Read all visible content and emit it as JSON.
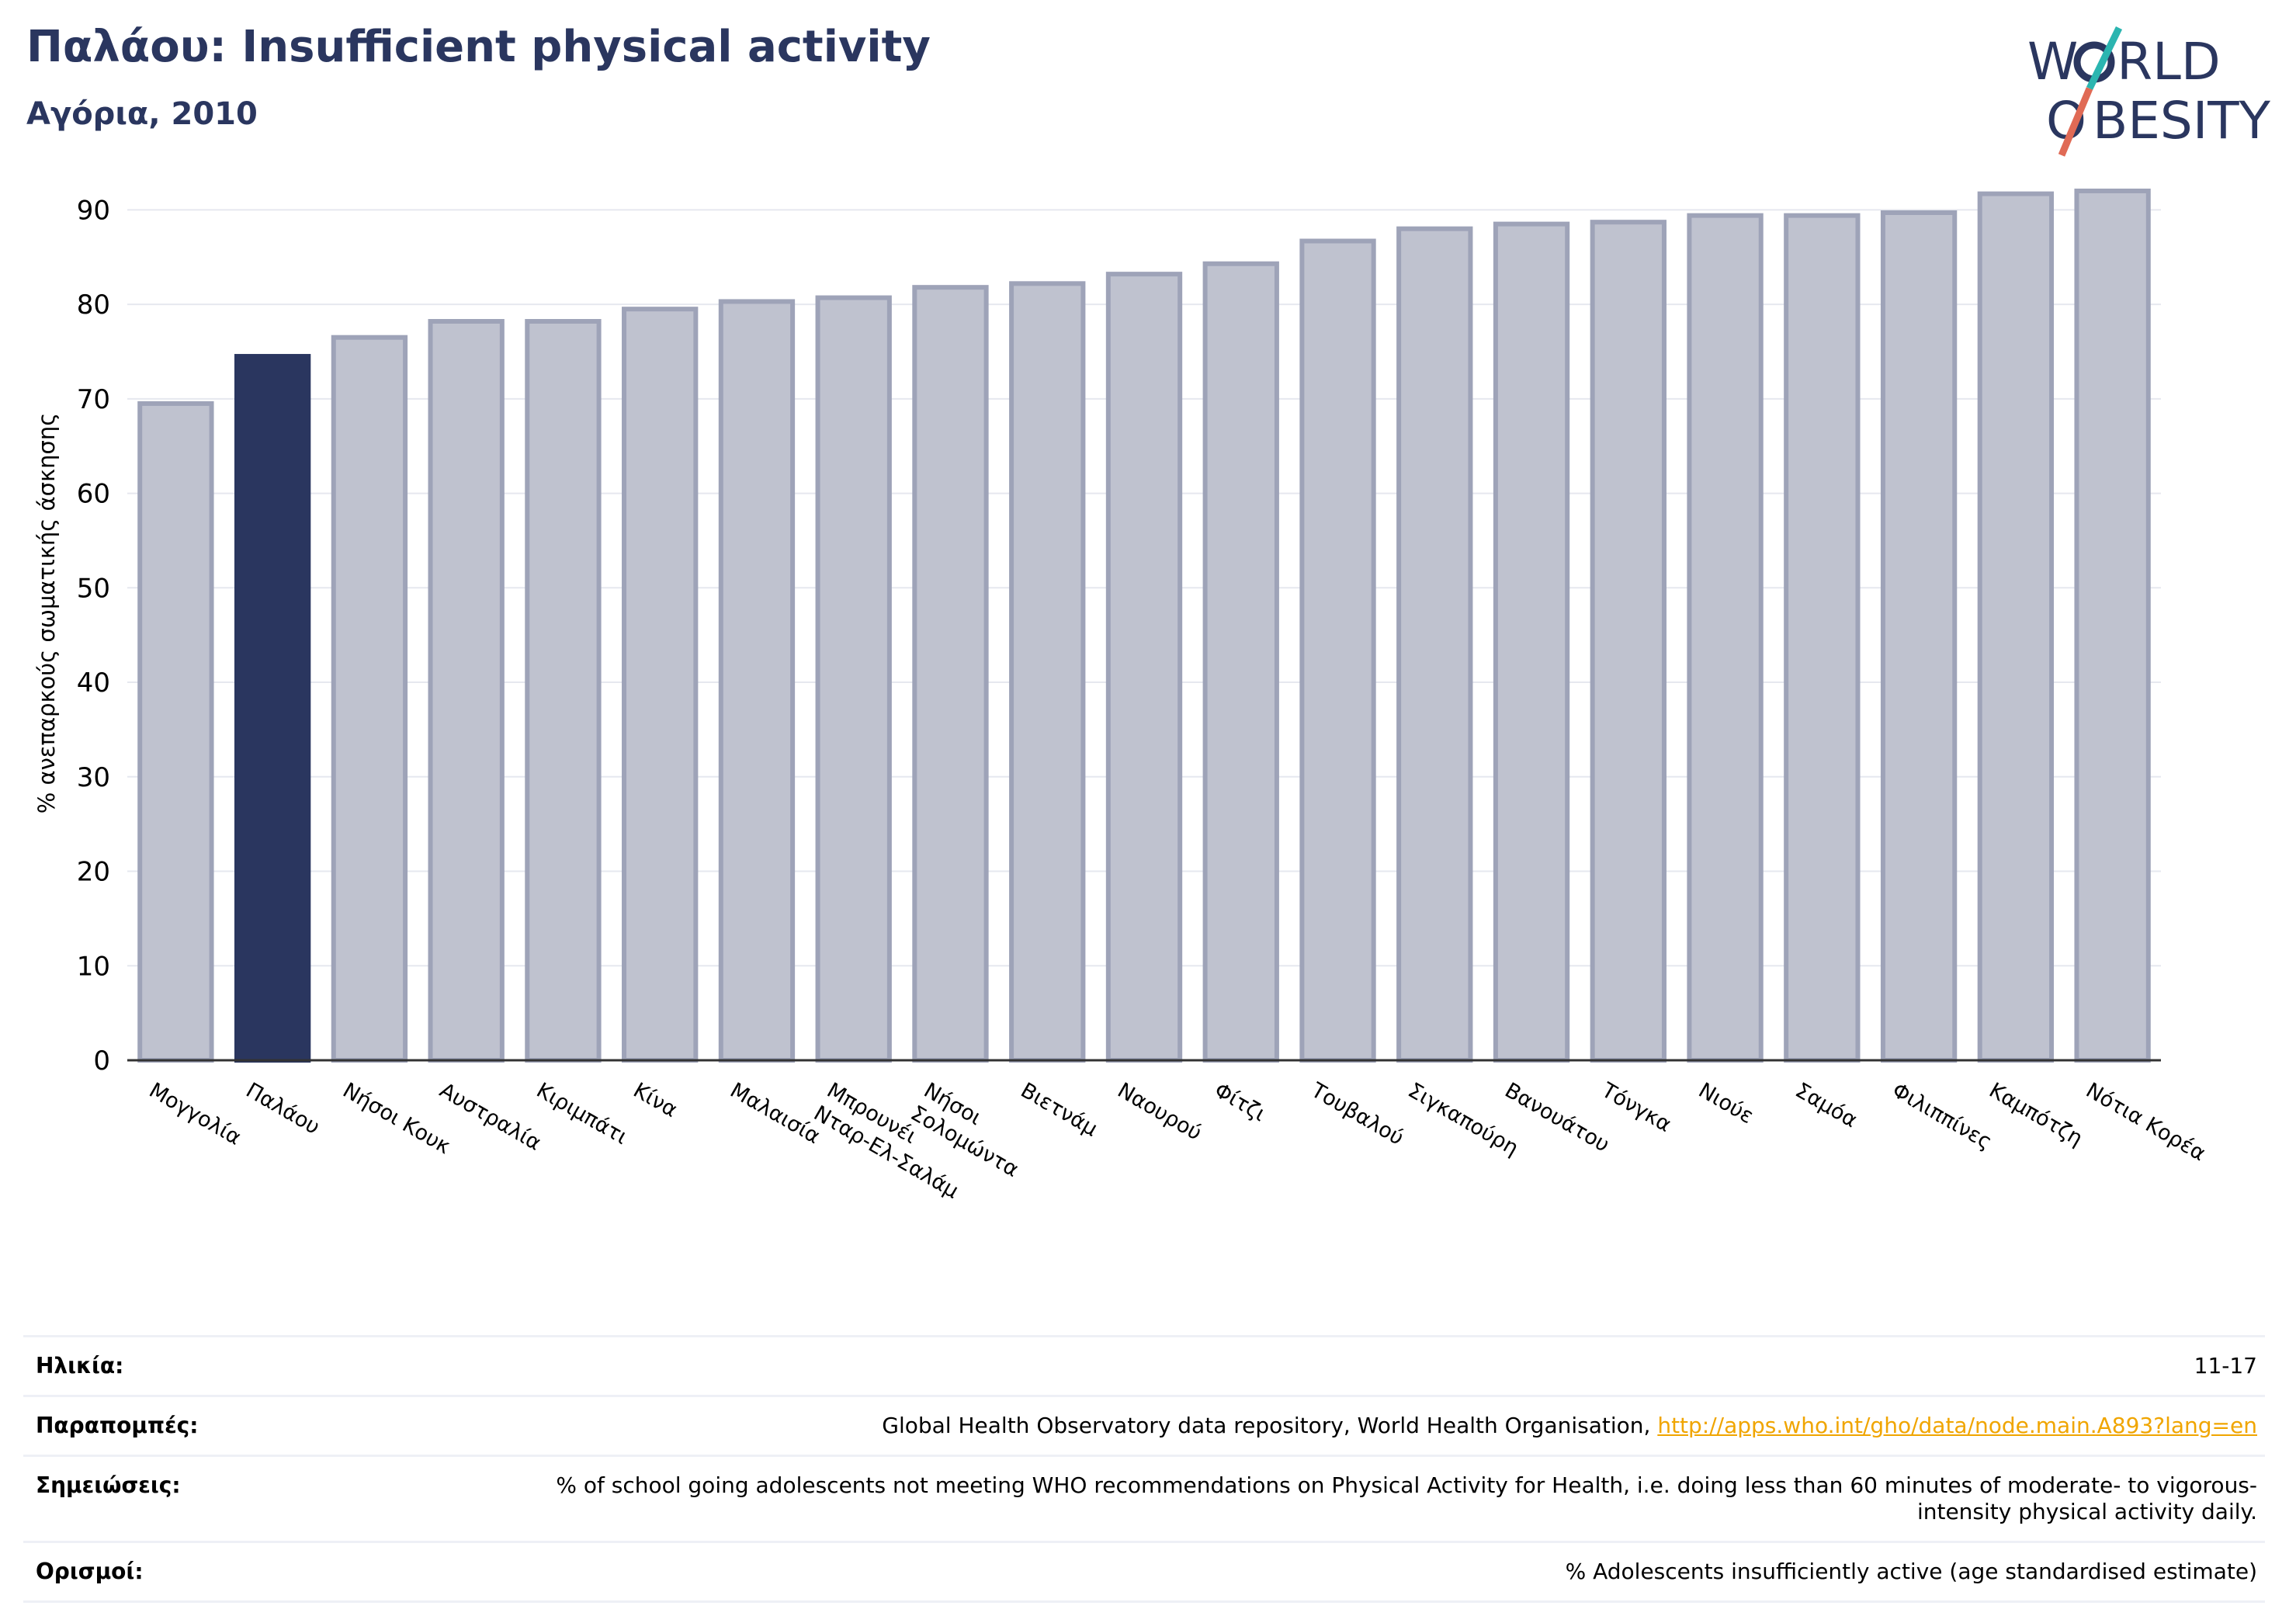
{
  "header": {
    "title": "Παλάου: Insufficient physical activity",
    "subtitle": "Αγόρια, 2010"
  },
  "logo": {
    "line1_pre": "W",
    "line1_post": "RLD",
    "line2_pre": "O",
    "line2_post": "BESITY"
  },
  "chart_data": {
    "type": "bar",
    "ylabel": "% ανεπαρκούς σωματικής άσκησης",
    "ylim": [
      0,
      92
    ],
    "yticks": [
      0,
      10,
      20,
      30,
      40,
      50,
      60,
      70,
      80,
      90
    ],
    "grid": true,
    "highlight": "Παλάου",
    "colors": {
      "bar": "#bfc2cf",
      "bar_border": "#9ea3b8",
      "highlight": "#2a365f",
      "text": "#2a365f"
    },
    "categories": [
      "Μογγολία",
      "Παλάου",
      "Νήσοι Κουκ",
      "Αυστραλία",
      "Κιριμπάτι",
      "Κίνα",
      "Μαλαισία",
      "Μπρουνέι Νταρ-Ελ-Σαλάμ",
      "Νήσοι Σολομώντα",
      "Βιετνάμ",
      "Ναουρού",
      "Φίτζι",
      "Τουβαλού",
      "Σιγκαπούρη",
      "Βανουάτου",
      "Τόνγκα",
      "Νιούε",
      "Σαμόα",
      "Φιλιππίνες",
      "Καμπότζη",
      "Νότια Κορέα"
    ],
    "values": [
      69.5,
      74.5,
      76.5,
      78.2,
      78.2,
      79.5,
      80.3,
      80.7,
      81.8,
      82.2,
      83.2,
      84.3,
      86.7,
      88.0,
      88.5,
      88.7,
      89.4,
      89.4,
      89.7,
      91.7,
      92.0
    ]
  },
  "footer": {
    "age_label": "Ηλικία:",
    "age_value": "11-17",
    "refs_label": "Παραπομπές:",
    "refs_text": "Global Health Observatory data repository, World Health Organisation, ",
    "refs_link": "http://apps.who.int/gho/data/node.main.A893?lang=en",
    "notes_label": "Σημειώσεις:",
    "notes_text": "% of school going adolescents not meeting WHO recommendations on Physical Activity for Health, i.e. doing less than 60 minutes of moderate- to vigorous-intensity physical activity daily.",
    "defs_label": "Ορισμοί:",
    "defs_text": "% Adolescents insufficiently active (age standardised estimate)"
  }
}
